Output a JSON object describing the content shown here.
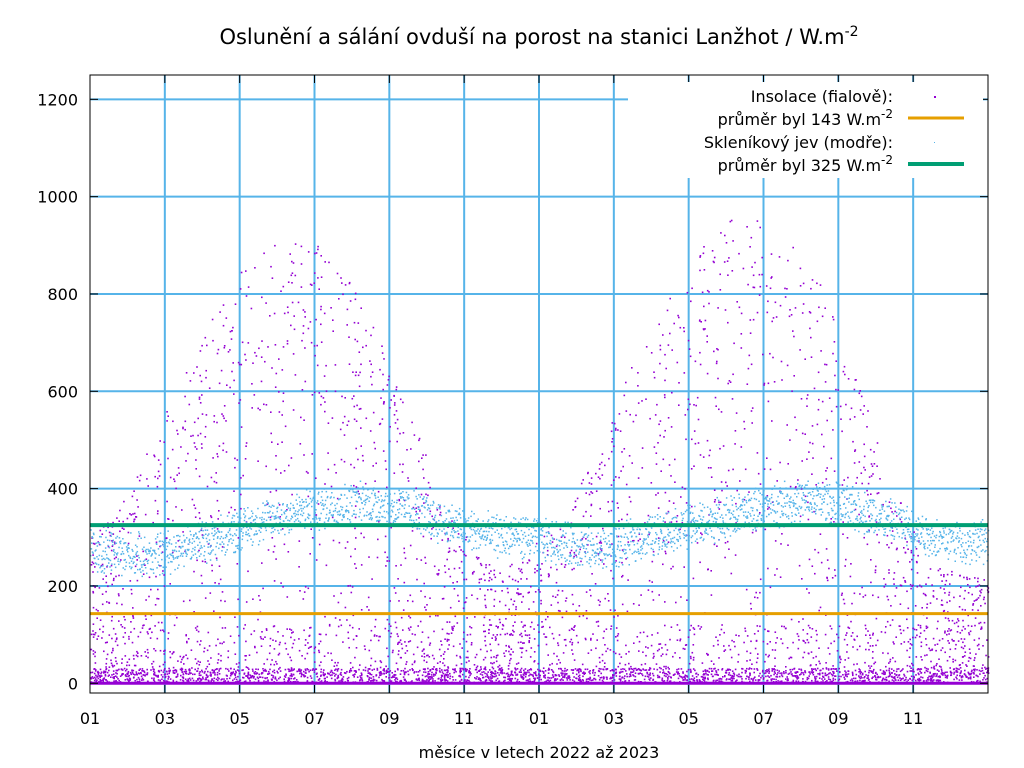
{
  "chart_data": {
    "type": "scatter",
    "title": "Oslunění a sálání ovduší na porost na stanici Lanžhot / W.m",
    "title_sup": "-2",
    "xlabel": "měsíce v letech 2022 až 2023",
    "ylabel": "",
    "ylim": [
      -20,
      1250
    ],
    "yticks": [
      0,
      200,
      400,
      600,
      800,
      1000,
      1200
    ],
    "xticks": [
      "01",
      "03",
      "05",
      "07",
      "09",
      "11",
      "01",
      "03",
      "05",
      "07",
      "09",
      "11"
    ],
    "x_month_index": [
      0,
      2,
      4,
      6,
      8,
      10,
      12,
      14,
      16,
      18,
      20,
      22
    ],
    "xlim_months": [
      0,
      24
    ],
    "grid": true,
    "legend_placement": "top-right",
    "series": [
      {
        "name": "Insolace (fialově):",
        "style": "points",
        "color": "#9400d3",
        "envelope_max_by_month": [
          330,
          470,
          640,
          790,
          900,
          920,
          880,
          760,
          560,
          360,
          250,
          250,
          340,
          460,
          660,
          800,
          940,
          960,
          930,
          820,
          620,
          400,
          240,
          220
        ]
      },
      {
        "name": "průměr byl 143 W.m",
        "name_sup": "-2",
        "style": "line",
        "color": "#e69f00",
        "value": 143
      },
      {
        "name": "Skleníkový jev (modře):",
        "style": "dots",
        "color": "#56b4e9",
        "mean_by_month": [
          270,
          260,
          280,
          300,
          330,
          350,
          365,
          370,
          355,
          330,
          305,
          300,
          290,
          270,
          290,
          315,
          330,
          350,
          370,
          375,
          355,
          330,
          300,
          290
        ]
      },
      {
        "name": "průměr byl 325 W.m",
        "name_sup": "-2",
        "style": "line",
        "color": "#009e73",
        "value": 325
      }
    ]
  }
}
